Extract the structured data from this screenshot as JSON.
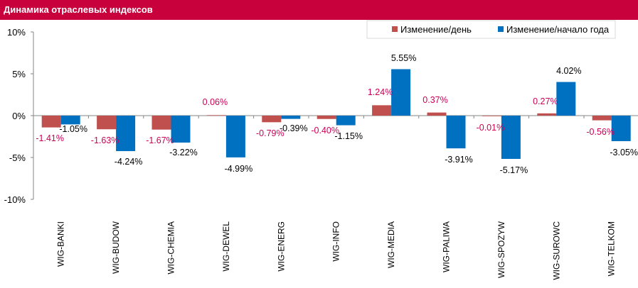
{
  "title": "Динамика отраслевых индексов",
  "colors": {
    "title_bg": "#c8003c",
    "series1": "#c0504d",
    "series2": "#0070c0",
    "label1": "#cc0055",
    "label2": "#000000"
  },
  "chart_data": {
    "type": "bar",
    "categories": [
      "WIG-BANKI",
      "WIG-BUDOW",
      "WIG-CHEMIA",
      "WIG-DEWEL",
      "WIG-ENERG",
      "WIG-INFO",
      "WIG-MEDIA",
      "WIG-PALIWA",
      "WIG-SPOZYW",
      "WIG-SUROWC",
      "WIG-TELKOM"
    ],
    "series": [
      {
        "name": "Изменение/день",
        "values": [
          -1.41,
          -1.63,
          -1.67,
          0.06,
          -0.79,
          -0.4,
          1.24,
          0.37,
          -0.01,
          0.27,
          -0.56
        ],
        "labels": [
          "-1.41%",
          "-1.63%",
          "-1.67%",
          "0.06%",
          "-0.79%",
          "-0.40%",
          "1.24%",
          "0.37%",
          "-0.01%",
          "0.27%",
          "-0.56%"
        ]
      },
      {
        "name": "Изменение/начало года",
        "values": [
          -1.05,
          -4.24,
          -3.22,
          -4.99,
          -0.39,
          -1.15,
          5.55,
          -3.91,
          -5.17,
          4.02,
          -3.05
        ],
        "labels": [
          "-1.05%",
          "-4.24%",
          "-3.22%",
          "-4.99%",
          "-0.39%",
          "-1.15%",
          "5.55%",
          "-3.91%",
          "-5.17%",
          "4.02%",
          "-3.05%"
        ]
      }
    ],
    "ylim": [
      -10,
      10
    ],
    "yticks": [
      "10%",
      "5%",
      "0%",
      "-5%",
      "-10%"
    ],
    "ytick_values": [
      10,
      5,
      0,
      -5,
      -10
    ],
    "legend_position": "top-right",
    "grid": false
  }
}
